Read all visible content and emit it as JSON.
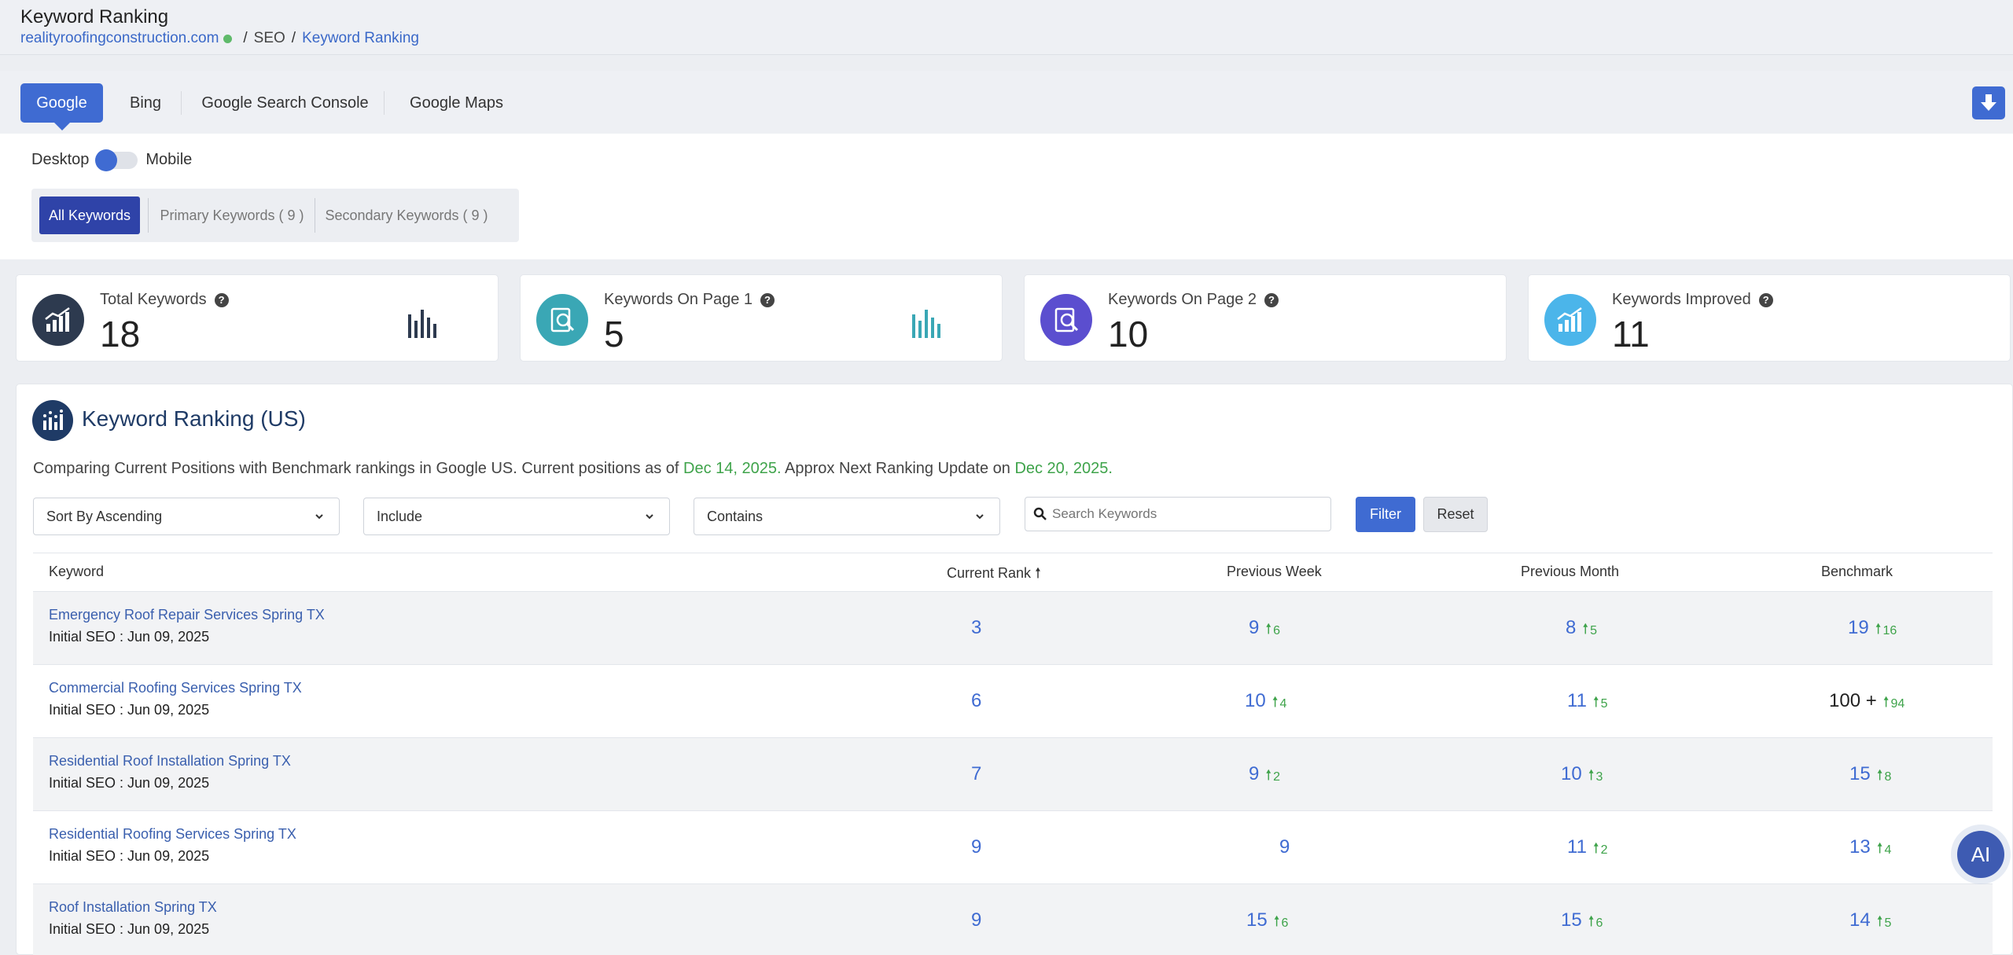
{
  "header": {
    "title": "Keyword Ranking",
    "breadcrumb": {
      "site": "realityroofingconstruction.com",
      "section": "SEO",
      "current": "Keyword Ranking"
    }
  },
  "engine_tabs": [
    "Google",
    "Bing",
    "Google Search Console",
    "Google Maps"
  ],
  "device": {
    "desktop": "Desktop",
    "mobile": "Mobile"
  },
  "keyword_filters": [
    "All Keywords",
    "Primary Keywords ( 9 )",
    "Secondary Keywords ( 9 )"
  ],
  "stats": [
    {
      "label": "Total Keywords",
      "value": "18",
      "icon": "growth-chart-icon",
      "color": "#2d3a4f"
    },
    {
      "label": "Keywords On Page 1",
      "value": "5",
      "icon": "search-report-icon",
      "color": "#3aa7b5"
    },
    {
      "label": "Keywords On Page 2",
      "value": "10",
      "icon": "search-report-icon",
      "color": "#5b4ecf"
    },
    {
      "label": "Keywords Improved",
      "value": "11",
      "icon": "growth-chart-icon",
      "color": "#4bb5ea"
    }
  ],
  "ranking": {
    "title": "Keyword Ranking (US)",
    "compare_prefix": "Comparing Current Positions with Benchmark rankings in Google US. Current positions as of ",
    "current_date": "Dec 14, 2025.",
    "compare_middle": " Approx Next Ranking Update on ",
    "next_date": "Dec 20, 2025.",
    "sort_select": "Sort By Ascending",
    "include_select": "Include",
    "contains_select": "Contains",
    "search_placeholder": "Search Keywords",
    "filter_label": "Filter",
    "reset_label": "Reset",
    "columns": [
      "Keyword",
      "Current Rank",
      "Previous Week",
      "Previous Month",
      "Benchmark"
    ],
    "rows": [
      {
        "keyword": "Emergency Roof Repair Services Spring TX",
        "initial": "Initial SEO : Jun 09, 2025",
        "current": "3",
        "week": "9",
        "week_chg": "6",
        "month": "8",
        "month_chg": "5",
        "bench": "19",
        "bench_chg": "16"
      },
      {
        "keyword": "Commercial Roofing Services Spring TX",
        "initial": "Initial SEO : Jun 09, 2025",
        "current": "6",
        "week": "10",
        "week_chg": "4",
        "month": "11",
        "month_chg": "5",
        "bench": "100 +",
        "bench_chg": "94"
      },
      {
        "keyword": "Residential Roof Installation Spring TX",
        "initial": "Initial SEO : Jun 09, 2025",
        "current": "7",
        "week": "9",
        "week_chg": "2",
        "month": "10",
        "month_chg": "3",
        "bench": "15",
        "bench_chg": "8"
      },
      {
        "keyword": "Residential Roofing Services Spring TX",
        "initial": "Initial SEO : Jun 09, 2025",
        "current": "9",
        "week": "9",
        "week_chg": "",
        "month": "11",
        "month_chg": "2",
        "bench": "13",
        "bench_chg": "4"
      },
      {
        "keyword": "Roof Installation Spring TX",
        "initial": "Initial SEO : Jun 09, 2025",
        "current": "9",
        "week": "15",
        "week_chg": "6",
        "month": "15",
        "month_chg": "6",
        "bench": "14",
        "bench_chg": "5"
      }
    ]
  },
  "ai_button": "AI"
}
